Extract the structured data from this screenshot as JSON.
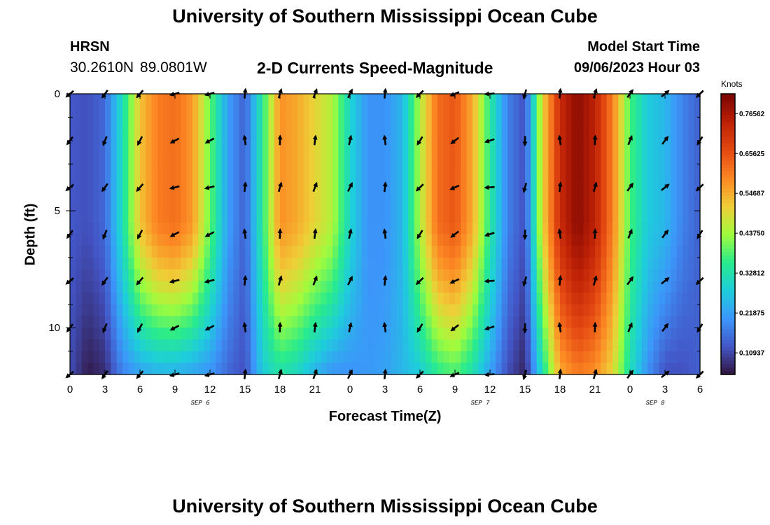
{
  "header": {
    "title": "University of Southern Mississippi Ocean Cube",
    "station": "HRSN",
    "coords": "30.2610N  89.0801W",
    "subtitle": "2-D Currents Speed-Magnitude",
    "model_start_label": "Model Start Time",
    "model_start_value": "09/06/2023 Hour 03"
  },
  "footer": {
    "title": "University of Southern Mississippi Ocean Cube"
  },
  "chart_data": {
    "type": "heatmap",
    "title": "2-D Currents Speed-Magnitude",
    "xlabel": "Forecast Time(Z)",
    "ylabel": "Depth (ft)",
    "x_range_hours": [
      0,
      54
    ],
    "y_range_ft": [
      0,
      12
    ],
    "x_tick_labels": [
      "0",
      "3",
      "6",
      "9",
      "12",
      "15",
      "18",
      "21",
      "0",
      "3",
      "6",
      "9",
      "12",
      "15",
      "18",
      "21",
      "0",
      "3",
      "6"
    ],
    "y_ticks": [
      0,
      5,
      10
    ],
    "date_labels": [
      {
        "text": "SEP 6",
        "hour": 12
      },
      {
        "text": "SEP 7",
        "hour": 36
      },
      {
        "text": "SEP 8",
        "hour": 51
      }
    ],
    "colorbar": {
      "units": "Knots",
      "range": [
        0.05,
        0.82
      ],
      "tick_values": [
        0.10937,
        0.21875,
        0.32812,
        0.4375,
        0.54687,
        0.65625,
        0.76562
      ],
      "tick_labels": [
        "0.10937",
        "0.21875",
        "0.32812",
        "0.43750",
        "0.54687",
        "0.65625",
        "0.76562"
      ]
    },
    "speed_profile": {
      "hours": [
        0,
        1.5,
        3,
        4.5,
        6,
        7.5,
        9,
        10.5,
        12,
        13.5,
        15,
        16.5,
        18,
        19.5,
        21,
        22.5,
        24,
        25.5,
        27,
        28.5,
        30,
        31.5,
        33,
        34.5,
        36,
        37.5,
        39,
        40.5,
        42,
        43.5,
        45,
        46.5,
        48,
        49.5,
        51,
        52.5,
        54
      ],
      "surface_speed_knots": [
        0.13,
        0.12,
        0.15,
        0.32,
        0.52,
        0.6,
        0.62,
        0.57,
        0.4,
        0.22,
        0.14,
        0.35,
        0.58,
        0.55,
        0.5,
        0.45,
        0.3,
        0.2,
        0.2,
        0.25,
        0.45,
        0.62,
        0.65,
        0.55,
        0.35,
        0.18,
        0.12,
        0.5,
        0.72,
        0.8,
        0.74,
        0.6,
        0.38,
        0.28,
        0.25,
        0.18,
        0.14
      ],
      "bottom_speed_knots": [
        0.12,
        0.06,
        0.08,
        0.18,
        0.22,
        0.24,
        0.24,
        0.22,
        0.2,
        0.15,
        0.12,
        0.28,
        0.33,
        0.3,
        0.24,
        0.2,
        0.2,
        0.21,
        0.22,
        0.25,
        0.28,
        0.35,
        0.38,
        0.32,
        0.22,
        0.12,
        0.07,
        0.32,
        0.55,
        0.6,
        0.58,
        0.5,
        0.32,
        0.2,
        0.12,
        0.12,
        0.14
      ]
    },
    "vectors": {
      "hours": [
        0,
        3,
        6,
        9,
        12,
        15,
        18,
        21,
        24,
        27,
        30,
        33,
        36,
        39,
        42,
        45,
        48,
        51,
        54
      ],
      "depths_ft": [
        0,
        2,
        4,
        6,
        8,
        10,
        12
      ],
      "surface_directions_deg": [
        225,
        240,
        235,
        200,
        200,
        90,
        80,
        75,
        70,
        90,
        230,
        210,
        190,
        260,
        90,
        80,
        60,
        45,
        230
      ]
    }
  }
}
